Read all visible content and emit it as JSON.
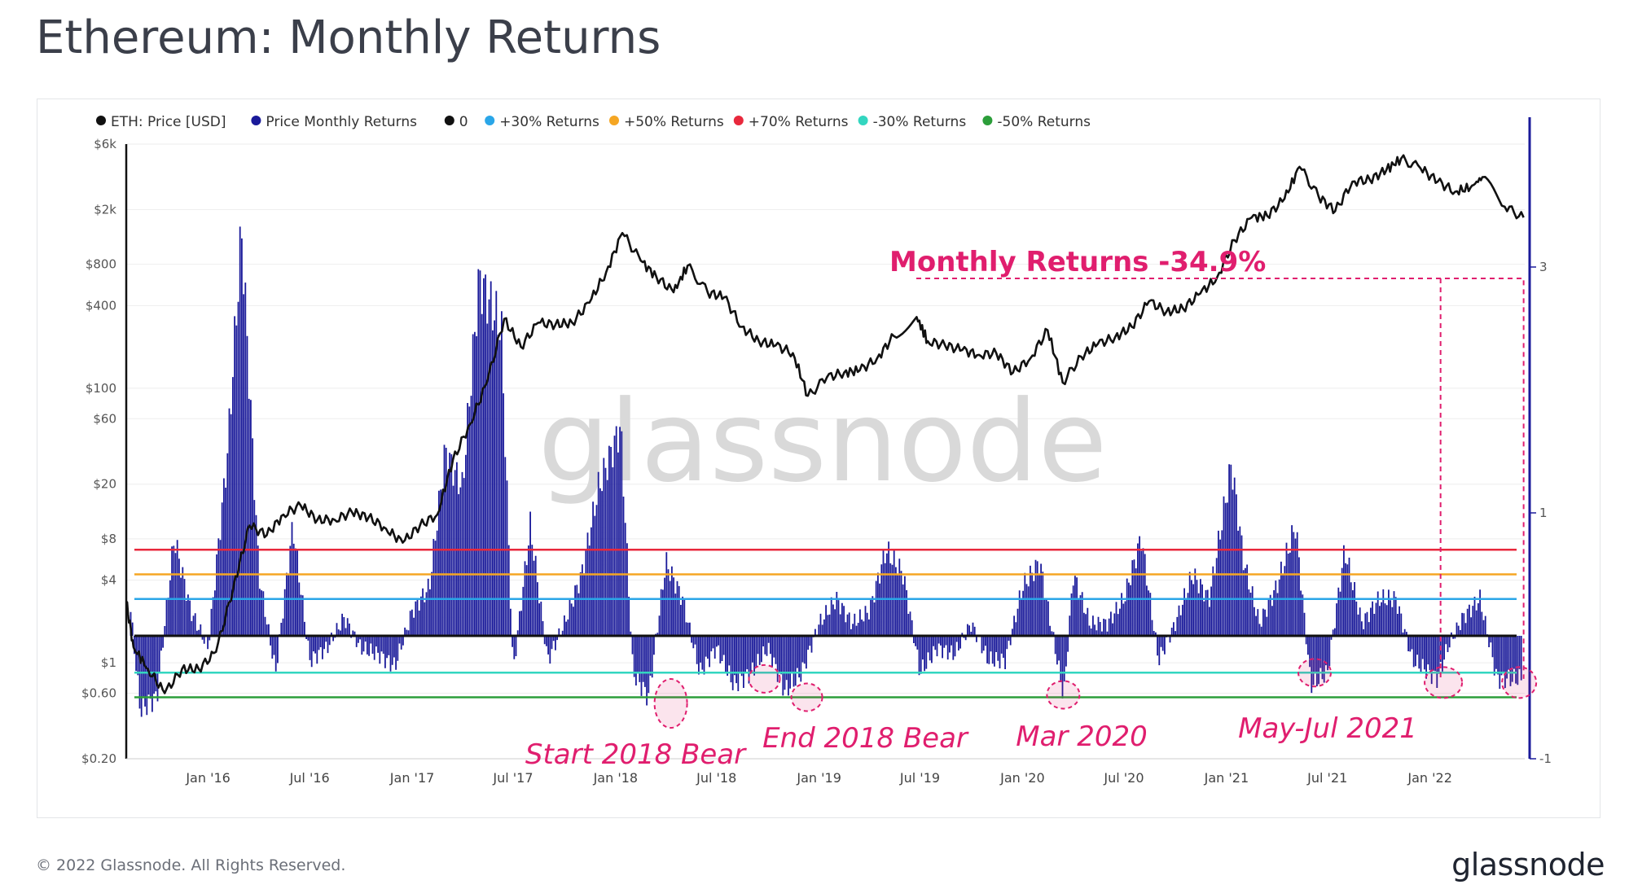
{
  "title": "Ethereum: Monthly Returns",
  "footer": {
    "copyright": "© 2022 Glassnode. All Rights Reserved.",
    "logo": "glassnode"
  },
  "watermark": "glassnode",
  "chart_data": {
    "type": "line",
    "legend": [
      {
        "label": "ETH: Price [USD]",
        "color": "#111111"
      },
      {
        "label": "Price Monthly Returns",
        "color": "#1a1a9a"
      },
      {
        "label": "0",
        "color": "#111111"
      },
      {
        "label": "+30% Returns",
        "color": "#2aa6e8"
      },
      {
        "label": "+50% Returns",
        "color": "#f5a623"
      },
      {
        "label": "+70% Returns",
        "color": "#e8283c"
      },
      {
        "label": "-30% Returns",
        "color": "#33d6c0"
      },
      {
        "label": "-50% Returns",
        "color": "#2c9e3a"
      }
    ],
    "x_ticks": [
      "Jan '16",
      "Jul '16",
      "Jan '17",
      "Jul '17",
      "Jan '18",
      "Jul '18",
      "Jan '19",
      "Jul '19",
      "Jan '20",
      "Jul '20",
      "Jan '21",
      "Jul '21",
      "Jan '22"
    ],
    "x_tick_dates": [
      "2016-01-01",
      "2016-07-01",
      "2017-01-01",
      "2017-07-01",
      "2018-01-01",
      "2018-07-01",
      "2019-01-01",
      "2019-07-01",
      "2020-01-01",
      "2020-07-01",
      "2021-01-01",
      "2021-07-01",
      "2022-01-01"
    ],
    "x_range": [
      "2015-08-07",
      "2022-06-20"
    ],
    "y_left": {
      "scale": "log",
      "range": [
        0.2,
        6000
      ],
      "tick_labels": [
        "$6k",
        "$2k",
        "$800",
        "$400",
        "$100",
        "$60",
        "$20",
        "$8",
        "$4",
        "$1",
        "$0.60",
        "$0.20"
      ],
      "tick_values": [
        6000,
        2000,
        800,
        400,
        100,
        60,
        20,
        8,
        4,
        1,
        0.6,
        0.2
      ]
    },
    "y_right": {
      "range": [
        -1,
        4
      ],
      "tick_labels": [
        "3",
        "1",
        "-1"
      ],
      "tick_values": [
        3,
        1,
        -1
      ]
    },
    "thresholds": [
      {
        "name": "0",
        "value": 0,
        "color": "#111111"
      },
      {
        "name": "+30% Returns",
        "value": 0.3,
        "color": "#2aa6e8"
      },
      {
        "name": "+50% Returns",
        "value": 0.5,
        "color": "#f5a623"
      },
      {
        "name": "+70% Returns",
        "value": 0.7,
        "color": "#e8283c"
      },
      {
        "name": "-30% Returns",
        "value": -0.3,
        "color": "#33d6c0"
      },
      {
        "name": "-50% Returns",
        "value": -0.5,
        "color": "#2c9e3a"
      }
    ],
    "series": [
      {
        "name": "ETH: Price [USD]",
        "color": "#111111",
        "points": [
          [
            "2015-08-07",
            2.8
          ],
          [
            "2015-08-20",
            1.3
          ],
          [
            "2015-09-15",
            0.9
          ],
          [
            "2015-10-15",
            0.6
          ],
          [
            "2015-11-15",
            0.9
          ],
          [
            "2015-12-15",
            0.9
          ],
          [
            "2016-01-15",
            1.2
          ],
          [
            "2016-02-15",
            3.5
          ],
          [
            "2016-03-15",
            10
          ],
          [
            "2016-04-15",
            8.5
          ],
          [
            "2016-05-15",
            12
          ],
          [
            "2016-06-15",
            14
          ],
          [
            "2016-07-15",
            11
          ],
          [
            "2016-08-15",
            11
          ],
          [
            "2016-09-15",
            12.5
          ],
          [
            "2016-10-15",
            11.5
          ],
          [
            "2016-11-15",
            9.5
          ],
          [
            "2016-12-15",
            7.5
          ],
          [
            "2017-01-15",
            10
          ],
          [
            "2017-02-15",
            12
          ],
          [
            "2017-03-15",
            30
          ],
          [
            "2017-04-15",
            55
          ],
          [
            "2017-05-15",
            110
          ],
          [
            "2017-06-15",
            320
          ],
          [
            "2017-07-15",
            200
          ],
          [
            "2017-08-15",
            300
          ],
          [
            "2017-09-15",
            290
          ],
          [
            "2017-10-15",
            300
          ],
          [
            "2017-11-15",
            420
          ],
          [
            "2017-12-15",
            700
          ],
          [
            "2018-01-13",
            1350
          ],
          [
            "2018-02-15",
            850
          ],
          [
            "2018-03-15",
            650
          ],
          [
            "2018-04-15",
            500
          ],
          [
            "2018-05-10",
            780
          ],
          [
            "2018-06-15",
            500
          ],
          [
            "2018-07-15",
            460
          ],
          [
            "2018-08-15",
            280
          ],
          [
            "2018-09-15",
            220
          ],
          [
            "2018-10-15",
            205
          ],
          [
            "2018-11-15",
            180
          ],
          [
            "2018-12-12",
            88
          ],
          [
            "2019-01-15",
            120
          ],
          [
            "2019-02-15",
            130
          ],
          [
            "2019-03-15",
            135
          ],
          [
            "2019-04-15",
            165
          ],
          [
            "2019-05-15",
            240
          ],
          [
            "2019-06-25",
            330
          ],
          [
            "2019-07-15",
            220
          ],
          [
            "2019-08-15",
            205
          ],
          [
            "2019-09-15",
            190
          ],
          [
            "2019-10-15",
            175
          ],
          [
            "2019-11-15",
            180
          ],
          [
            "2019-12-15",
            130
          ],
          [
            "2020-01-15",
            165
          ],
          [
            "2020-02-15",
            265
          ],
          [
            "2020-03-13",
            110
          ],
          [
            "2020-04-15",
            170
          ],
          [
            "2020-05-15",
            210
          ],
          [
            "2020-06-15",
            235
          ],
          [
            "2020-07-15",
            280
          ],
          [
            "2020-08-15",
            430
          ],
          [
            "2020-09-15",
            360
          ],
          [
            "2020-10-15",
            380
          ],
          [
            "2020-11-15",
            490
          ],
          [
            "2020-12-15",
            640
          ],
          [
            "2021-01-15",
            1200
          ],
          [
            "2021-02-15",
            1750
          ],
          [
            "2021-03-15",
            1800
          ],
          [
            "2021-04-15",
            2400
          ],
          [
            "2021-05-12",
            4100
          ],
          [
            "2021-06-15",
            2500
          ],
          [
            "2021-07-15",
            1950
          ],
          [
            "2021-08-15",
            3200
          ],
          [
            "2021-09-15",
            3300
          ],
          [
            "2021-10-15",
            3900
          ],
          [
            "2021-11-10",
            4700
          ],
          [
            "2021-12-15",
            4000
          ],
          [
            "2022-01-15",
            3200
          ],
          [
            "2022-02-15",
            2700
          ],
          [
            "2022-03-15",
            2900
          ],
          [
            "2022-04-05",
            3450
          ],
          [
            "2022-05-15",
            2100
          ],
          [
            "2022-06-18",
            1750
          ]
        ]
      },
      {
        "name": "Price Monthly Returns",
        "color": "#1a1a9a",
        "points": [
          [
            "2015-08-15",
            0.2
          ],
          [
            "2015-09-01",
            -0.6
          ],
          [
            "2015-10-01",
            -0.5
          ],
          [
            "2015-11-01",
            0.8
          ],
          [
            "2015-12-01",
            0.2
          ],
          [
            "2016-01-01",
            -0.1
          ],
          [
            "2016-02-05",
            1.5
          ],
          [
            "2016-03-01",
            3.3
          ],
          [
            "2016-04-01",
            0.5
          ],
          [
            "2016-05-01",
            -0.3
          ],
          [
            "2016-06-01",
            0.9
          ],
          [
            "2016-07-01",
            -0.2
          ],
          [
            "2016-08-01",
            -0.1
          ],
          [
            "2016-09-01",
            0.15
          ],
          [
            "2016-10-01",
            -0.1
          ],
          [
            "2016-11-01",
            -0.15
          ],
          [
            "2016-12-01",
            -0.25
          ],
          [
            "2017-01-01",
            0.2
          ],
          [
            "2017-02-01",
            0.4
          ],
          [
            "2017-03-01",
            1.5
          ],
          [
            "2017-04-01",
            1.2
          ],
          [
            "2017-05-01",
            2.9
          ],
          [
            "2017-06-10",
            2.5
          ],
          [
            "2017-07-01",
            -0.3
          ],
          [
            "2017-08-01",
            0.9
          ],
          [
            "2017-09-01",
            -0.2
          ],
          [
            "2017-10-01",
            0.1
          ],
          [
            "2017-11-01",
            0.5
          ],
          [
            "2017-12-01",
            1.2
          ],
          [
            "2018-01-10",
            1.7
          ],
          [
            "2018-02-01",
            -0.3
          ],
          [
            "2018-03-01",
            -0.5
          ],
          [
            "2018-04-01",
            0.6
          ],
          [
            "2018-05-01",
            0.3
          ],
          [
            "2018-06-01",
            -0.3
          ],
          [
            "2018-07-01",
            -0.1
          ],
          [
            "2018-08-01",
            -0.4
          ],
          [
            "2018-09-01",
            -0.3
          ],
          [
            "2018-10-01",
            -0.1
          ],
          [
            "2018-11-01",
            -0.45
          ],
          [
            "2018-12-01",
            -0.3
          ],
          [
            "2019-01-01",
            0.1
          ],
          [
            "2019-02-01",
            0.3
          ],
          [
            "2019-03-01",
            0.1
          ],
          [
            "2019-04-01",
            0.2
          ],
          [
            "2019-05-01",
            0.7
          ],
          [
            "2019-06-01",
            0.5
          ],
          [
            "2019-07-01",
            -0.3
          ],
          [
            "2019-08-01",
            -0.1
          ],
          [
            "2019-09-01",
            -0.15
          ],
          [
            "2019-10-01",
            0.1
          ],
          [
            "2019-11-01",
            -0.2
          ],
          [
            "2019-12-01",
            -0.2
          ],
          [
            "2020-01-01",
            0.4
          ],
          [
            "2020-02-01",
            0.6
          ],
          [
            "2020-03-15",
            -0.5
          ],
          [
            "2020-04-01",
            0.5
          ],
          [
            "2020-05-01",
            0.1
          ],
          [
            "2020-06-01",
            0.1
          ],
          [
            "2020-07-01",
            0.3
          ],
          [
            "2020-08-01",
            0.8
          ],
          [
            "2020-09-01",
            -0.2
          ],
          [
            "2020-10-01",
            0.1
          ],
          [
            "2020-11-01",
            0.5
          ],
          [
            "2020-12-01",
            0.3
          ],
          [
            "2021-01-10",
            1.4
          ],
          [
            "2021-02-01",
            0.6
          ],
          [
            "2021-03-01",
            0.1
          ],
          [
            "2021-04-01",
            0.4
          ],
          [
            "2021-05-05",
            0.9
          ],
          [
            "2021-06-01",
            -0.4
          ],
          [
            "2021-07-01",
            -0.3
          ],
          [
            "2021-08-01",
            0.7
          ],
          [
            "2021-09-01",
            0.1
          ],
          [
            "2021-10-01",
            0.3
          ],
          [
            "2021-11-01",
            0.3
          ],
          [
            "2021-12-01",
            -0.2
          ],
          [
            "2022-01-15",
            -0.35
          ],
          [
            "2022-02-01",
            -0.1
          ],
          [
            "2022-03-01",
            0.15
          ],
          [
            "2022-04-01",
            0.3
          ],
          [
            "2022-05-01",
            -0.35
          ],
          [
            "2022-06-15",
            -0.349
          ]
        ]
      }
    ],
    "annotations": [
      {
        "text": "Monthly Returns -34.9%",
        "color": "#e01e6e"
      },
      {
        "text": "Start 2018 Bear",
        "color": "#e01e6e"
      },
      {
        "text": "End 2018 Bear",
        "color": "#e01e6e"
      },
      {
        "text": "Mar 2020",
        "color": "#e01e6e"
      },
      {
        "text": "May-Jul 2021",
        "color": "#e01e6e"
      }
    ]
  }
}
